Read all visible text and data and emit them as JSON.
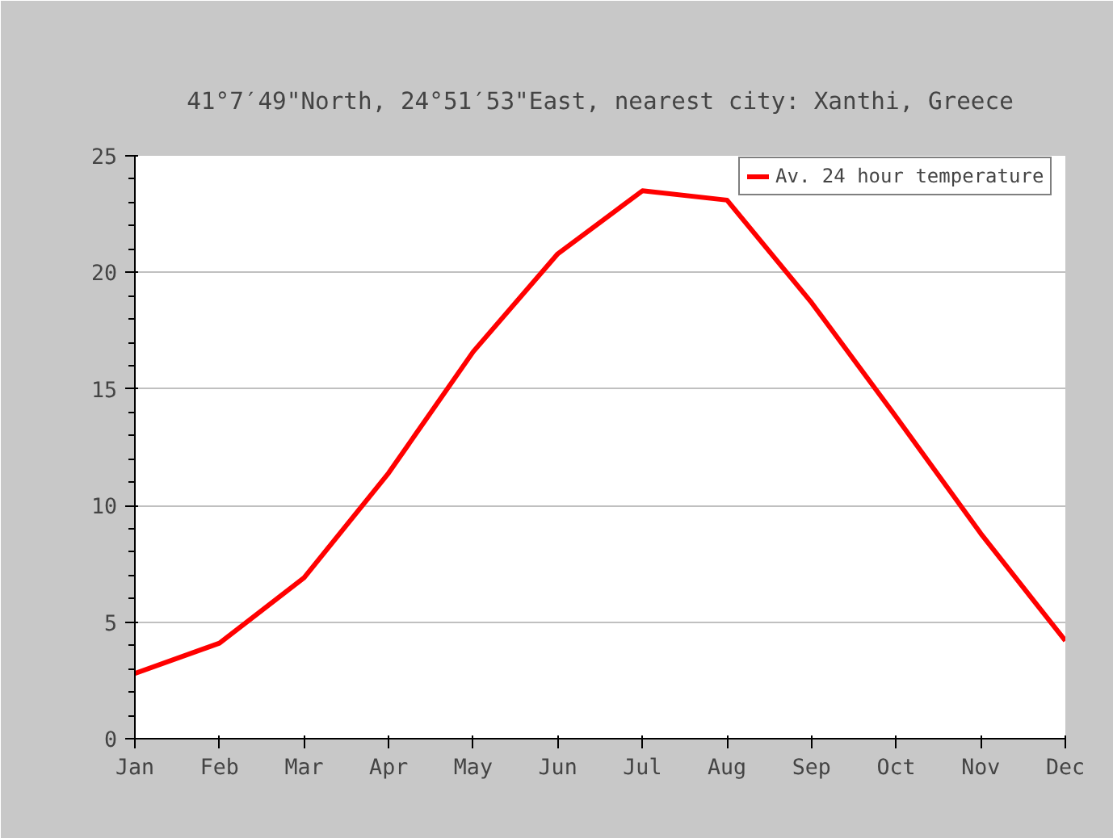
{
  "chart_data": {
    "type": "line",
    "title": "41°7′49\"North, 24°51′53\"East, nearest city: Xanthi, Greece",
    "categories": [
      "Jan",
      "Feb",
      "Mar",
      "Apr",
      "May",
      "Jun",
      "Jul",
      "Aug",
      "Sep",
      "Oct",
      "Nov",
      "Dec"
    ],
    "series": [
      {
        "name": "Av. 24 hour temperature",
        "color": "#ff0000",
        "values": [
          2.8,
          4.1,
          6.9,
          11.4,
          16.6,
          20.8,
          23.5,
          23.1,
          18.7,
          13.8,
          8.8,
          4.2
        ]
      }
    ],
    "ylim": [
      0,
      25
    ],
    "yticks": [
      0,
      5,
      10,
      15,
      20,
      25
    ],
    "grid": "y",
    "legend": "top right",
    "line_style": "solid"
  }
}
